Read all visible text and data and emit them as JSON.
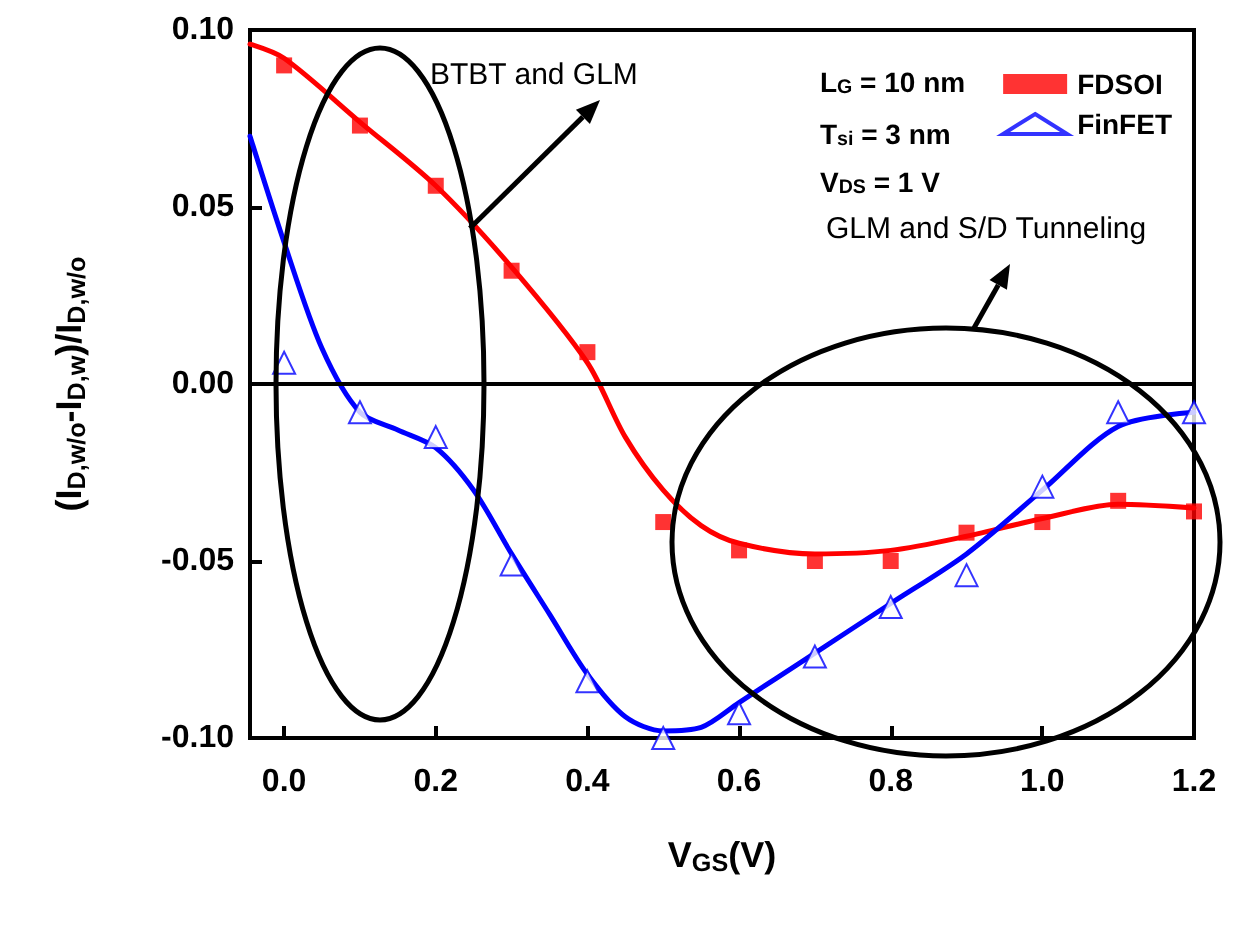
{
  "chart_data": {
    "type": "scatter",
    "xlabel": "V$_{GS}$(V)",
    "ylabel": "(I$_{D,w/o}$-I$_{D,w}$)/I$_{D,w/o}$",
    "xlim": [
      -0.045,
      1.2
    ],
    "ylim": [
      -0.1,
      0.1
    ],
    "xticks": [
      {
        "value": 0,
        "label": "0.0"
      },
      {
        "value": 0.2,
        "label": "0.2"
      },
      {
        "value": 0.4,
        "label": "0.4"
      },
      {
        "value": 0.6,
        "label": "0.6"
      },
      {
        "value": 0.8,
        "label": "0.8"
      },
      {
        "value": 1,
        "label": "1.0"
      },
      {
        "value": 1.2,
        "label": "1.2"
      }
    ],
    "yticks": [
      {
        "value": -0.1,
        "label": "-0.10"
      },
      {
        "value": -0.05,
        "label": "-0.05"
      },
      {
        "value": 0,
        "label": "0.00"
      },
      {
        "value": 0.05,
        "label": "0.05"
      },
      {
        "value": 0.1,
        "label": "0.10"
      }
    ],
    "grid": false,
    "legend": "top right",
    "x": [
      0,
      0.1,
      0.2,
      0.3,
      0.4,
      0.5,
      0.6,
      0.7,
      0.8,
      0.9,
      1.0,
      1.1,
      1.2
    ],
    "series": [
      {
        "name": "FDSOI",
        "color": "#ff0000",
        "marker": "square",
        "values": [
          0.09,
          0.073,
          0.056,
          0.032,
          0.009,
          -0.039,
          -0.047,
          -0.05,
          -0.05,
          -0.042,
          -0.039,
          -0.033,
          -0.036
        ]
      },
      {
        "name": "FinFET",
        "color": "#0000ff",
        "marker": "triangle",
        "values": [
          0.006,
          -0.008,
          -0.015,
          -0.051,
          -0.084,
          -0.1,
          -0.093,
          -0.077,
          -0.063,
          -0.054,
          -0.029,
          -0.008,
          -0.008
        ]
      },
      {
        "type": "line",
        "color": "#ff0000",
        "marker": "none",
        "x": [
          -0.045,
          0,
          0.1,
          0.2,
          0.3,
          0.4,
          0.45,
          0.5,
          0.55,
          0.6,
          0.7,
          0.8,
          0.9,
          1.0,
          1.1,
          1.2
        ],
        "values": [
          0.096,
          0.092,
          0.074,
          0.056,
          0.033,
          0.006,
          -0.015,
          -0.03,
          -0.04,
          -0.045,
          -0.048,
          -0.047,
          -0.043,
          -0.038,
          -0.034,
          -0.035
        ]
      },
      {
        "type": "line",
        "color": "#0000ff",
        "marker": "none",
        "x": [
          -0.045,
          0,
          0.05,
          0.1,
          0.15,
          0.2,
          0.25,
          0.3,
          0.35,
          0.4,
          0.45,
          0.5,
          0.55,
          0.6,
          0.7,
          0.8,
          0.9,
          1.0,
          1.1,
          1.2
        ],
        "values": [
          0.07,
          0.04,
          0.01,
          -0.008,
          -0.013,
          -0.018,
          -0.03,
          -0.048,
          -0.065,
          -0.082,
          -0.094,
          -0.098,
          -0.097,
          -0.09,
          -0.076,
          -0.062,
          -0.048,
          -0.03,
          -0.012,
          -0.008
        ]
      }
    ],
    "ref_lines": [
      {
        "axis": "y",
        "value": 0,
        "color": "#000000"
      }
    ],
    "annotations": [
      {
        "text": "BTBT and GLM",
        "x": 0.245,
        "y": 0.044
      },
      "L$_{G}$ = 10 nm",
      "T$_{si}$ = 3 nm",
      "V$_{DS}$ = 1 V",
      "GLM and S/D Tunneling"
    ]
  }
}
